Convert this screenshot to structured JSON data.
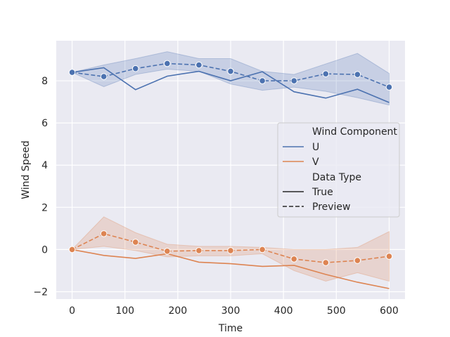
{
  "chart_data": {
    "type": "line",
    "title": "",
    "xlabel": "Time",
    "ylabel": "Wind Speed",
    "xlim": [
      -30,
      630
    ],
    "ylim": [
      -2.35,
      9.9
    ],
    "xticks": [
      0,
      100,
      200,
      300,
      400,
      500,
      600
    ],
    "yticks": [
      -2,
      0,
      2,
      4,
      6,
      8
    ],
    "grid": true,
    "legend_position": "center-right",
    "colors": {
      "U": "#4c72b0",
      "V": "#dd8452",
      "plot_bg": "#eaeaf2",
      "grid": "#ffffff"
    },
    "x": [
      0,
      60,
      120,
      180,
      240,
      300,
      360,
      420,
      480,
      540,
      600
    ],
    "series": [
      {
        "component": "U",
        "data_type": "True",
        "style": "solid",
        "color": "#4c72b0",
        "values": [
          8.4,
          8.62,
          7.58,
          8.22,
          8.45,
          8.0,
          8.43,
          7.48,
          7.18,
          7.6,
          6.97
        ]
      },
      {
        "component": "U",
        "data_type": "Preview",
        "style": "dashed",
        "color": "#4c72b0",
        "values": [
          8.4,
          8.2,
          8.58,
          8.82,
          8.75,
          8.45,
          8.0,
          8.0,
          8.33,
          8.3,
          7.7
        ],
        "ci_low": [
          8.4,
          7.72,
          8.3,
          8.55,
          8.45,
          7.85,
          7.55,
          7.7,
          7.5,
          7.2,
          6.85
        ],
        "ci_high": [
          8.4,
          8.75,
          9.05,
          9.38,
          9.05,
          9.05,
          8.45,
          8.3,
          8.8,
          9.3,
          8.35
        ]
      },
      {
        "component": "V",
        "data_type": "True",
        "style": "solid",
        "color": "#dd8452",
        "values": [
          0.0,
          -0.28,
          -0.42,
          -0.2,
          -0.6,
          -0.67,
          -0.8,
          -0.75,
          -1.18,
          -1.55,
          -1.85
        ]
      },
      {
        "component": "V",
        "data_type": "Preview",
        "style": "dashed",
        "color": "#dd8452",
        "values": [
          0.0,
          0.75,
          0.35,
          -0.08,
          -0.05,
          -0.05,
          0.0,
          -0.45,
          -0.62,
          -0.52,
          -0.32
        ],
        "ci_low": [
          0.0,
          0.15,
          -0.05,
          -0.35,
          -0.3,
          -0.3,
          -0.2,
          -1.0,
          -1.5,
          -1.1,
          -1.5
        ],
        "ci_high": [
          0.0,
          1.55,
          0.8,
          0.25,
          0.15,
          0.15,
          0.1,
          0.0,
          0.0,
          0.1,
          0.85
        ]
      }
    ],
    "legend": {
      "hue_title": "Wind Component",
      "hue_items": [
        {
          "label": "U",
          "color": "#4c72b0"
        },
        {
          "label": "V",
          "color": "#dd8452"
        }
      ],
      "style_title": "Data Type",
      "style_items": [
        {
          "label": "True",
          "style": "solid"
        },
        {
          "label": "Preview",
          "style": "dashed"
        }
      ]
    }
  }
}
